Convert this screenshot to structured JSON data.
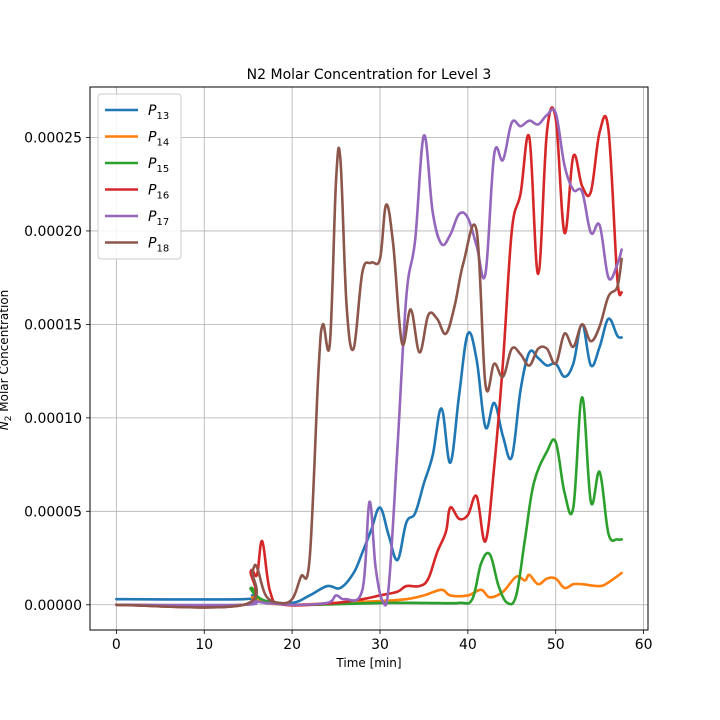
{
  "chart_data": {
    "type": "line",
    "title": "N2 Molar Concentration for Level 3",
    "xlabel": "Time [min]",
    "ylabel_sub": "2",
    "ylabel_main": "N",
    "ylabel_rest": " Molar Concentration",
    "xlim": [
      -3,
      60.5
    ],
    "ylim": [
      -1.35e-05,
      0.000277
    ],
    "xticks": [
      0,
      10,
      20,
      30,
      40,
      50,
      60
    ],
    "xtick_labels": [
      "0",
      "10",
      "20",
      "30",
      "40",
      "50",
      "60"
    ],
    "yticks": [
      0,
      5e-05,
      0.0001,
      0.00015,
      0.0002,
      0.00025
    ],
    "ytick_labels": [
      "0.00000",
      "0.00005",
      "0.00010",
      "0.00015",
      "0.00020",
      "0.00025"
    ],
    "grid": true,
    "legend_position": "top-left",
    "series": [
      {
        "name": "P",
        "sub": "13",
        "color": "#1f77b4",
        "points": [
          [
            0,
            3e-06
          ],
          [
            14.5,
            3e-06
          ],
          [
            15.5,
            5e-06
          ],
          [
            17,
            2e-06
          ],
          [
            20,
            1e-06
          ],
          [
            22,
            5e-06
          ],
          [
            24,
            1e-05
          ],
          [
            25.5,
            9e-06
          ],
          [
            27,
            1.7e-05
          ],
          [
            28,
            2.8e-05
          ],
          [
            29,
            4e-05
          ],
          [
            30,
            5.2e-05
          ],
          [
            31,
            3.7e-05
          ],
          [
            32,
            2.4e-05
          ],
          [
            33,
            4.4e-05
          ],
          [
            34,
            4.9e-05
          ],
          [
            35,
            6.5e-05
          ],
          [
            36,
            8e-05
          ],
          [
            37,
            0.000105
          ],
          [
            38,
            7.6e-05
          ],
          [
            39,
            0.000112
          ],
          [
            40,
            0.000145
          ],
          [
            41,
            0.000131
          ],
          [
            42,
            9.5e-05
          ],
          [
            43,
            0.000108
          ],
          [
            44,
            9e-05
          ],
          [
            45,
            7.9e-05
          ],
          [
            46,
            0.000115
          ],
          [
            47,
            0.000135
          ],
          [
            48,
            0.000132
          ],
          [
            49,
            0.000128
          ],
          [
            50,
            0.000129
          ],
          [
            51,
            0.000122
          ],
          [
            52,
            0.000129
          ],
          [
            53,
            0.00015
          ],
          [
            54,
            0.000128
          ],
          [
            55,
            0.000138
          ],
          [
            56,
            0.000153
          ],
          [
            57,
            0.000144
          ],
          [
            57.5,
            0.000143
          ]
        ]
      },
      {
        "name": "P",
        "sub": "14",
        "color": "#ff7f0e",
        "points": [
          [
            0,
            0
          ],
          [
            14.5,
            0
          ],
          [
            15.5,
            4e-06
          ],
          [
            17,
            1e-06
          ],
          [
            20,
            0
          ],
          [
            25,
            1e-06
          ],
          [
            30,
            2e-06
          ],
          [
            33,
            3e-06
          ],
          [
            35,
            5e-06
          ],
          [
            37,
            8e-06
          ],
          [
            38,
            5e-06
          ],
          [
            40,
            5e-06
          ],
          [
            41.5,
            8e-06
          ],
          [
            42.5,
            4e-06
          ],
          [
            44,
            7e-06
          ],
          [
            45.5,
            1.5e-05
          ],
          [
            46.5,
            1.3e-05
          ],
          [
            47,
            1.6e-05
          ],
          [
            48,
            1.1e-05
          ],
          [
            49,
            1.4e-05
          ],
          [
            50,
            1.4e-05
          ],
          [
            51,
            9e-06
          ],
          [
            52,
            1.1e-05
          ],
          [
            53,
            1.1e-05
          ],
          [
            55,
            1e-05
          ],
          [
            56,
            1.2e-05
          ],
          [
            57.5,
            1.7e-05
          ]
        ]
      },
      {
        "name": "P",
        "sub": "15",
        "color": "#2ca02c",
        "points": [
          [
            0,
            0
          ],
          [
            14.5,
            0
          ],
          [
            15.3,
            9e-06
          ],
          [
            16.5,
            3e-06
          ],
          [
            20,
            0
          ],
          [
            30,
            1e-06
          ],
          [
            35,
            1e-06
          ],
          [
            39,
            1e-06
          ],
          [
            40.5,
            3e-06
          ],
          [
            41.5,
            2.2e-05
          ],
          [
            42.5,
            2.7e-05
          ],
          [
            43.5,
            1e-05
          ],
          [
            44.5,
            1e-06
          ],
          [
            45.5,
            5e-06
          ],
          [
            46.5,
            3.5e-05
          ],
          [
            47.5,
            6.5e-05
          ],
          [
            49,
            8.2e-05
          ],
          [
            50,
            8.7e-05
          ],
          [
            51,
            6e-05
          ],
          [
            52,
            5.2e-05
          ],
          [
            53,
            0.000111
          ],
          [
            54,
            5.5e-05
          ],
          [
            55,
            7.1e-05
          ],
          [
            56,
            3.8e-05
          ],
          [
            57,
            3.5e-05
          ],
          [
            57.5,
            3.5e-05
          ]
        ]
      },
      {
        "name": "P",
        "sub": "16",
        "color": "#d62728",
        "points": [
          [
            0,
            0
          ],
          [
            14.5,
            0
          ],
          [
            15.3,
            1.8e-05
          ],
          [
            16,
            1.6e-05
          ],
          [
            16.6,
            3.4e-05
          ],
          [
            17.5,
            7e-06
          ],
          [
            19,
            0
          ],
          [
            25,
            1e-06
          ],
          [
            28,
            3e-06
          ],
          [
            30,
            5e-06
          ],
          [
            32,
            7e-06
          ],
          [
            33,
            1e-05
          ],
          [
            34.5,
            1e-05
          ],
          [
            35.5,
            1.4e-05
          ],
          [
            36.5,
            2.8e-05
          ],
          [
            37.5,
            3.9e-05
          ],
          [
            38,
            5.2e-05
          ],
          [
            39,
            4.6e-05
          ],
          [
            40,
            4.8e-05
          ],
          [
            41,
            5.8e-05
          ],
          [
            42,
            3.4e-05
          ],
          [
            43,
            7.4e-05
          ],
          [
            44,
            0.00013
          ],
          [
            45,
            0.0002
          ],
          [
            46,
            0.00022
          ],
          [
            47,
            0.00025
          ],
          [
            48,
            0.000177
          ],
          [
            49,
            0.000253
          ],
          [
            50,
            0.00026
          ],
          [
            51,
            0.000199
          ],
          [
            52,
            0.00024
          ],
          [
            53,
            0.000224
          ],
          [
            54,
            0.000221
          ],
          [
            55,
            0.000253
          ],
          [
            56,
            0.000254
          ],
          [
            57,
            0.000175
          ],
          [
            57.5,
            0.000167
          ]
        ]
      },
      {
        "name": "P",
        "sub": "17",
        "color": "#9467bd",
        "points": [
          [
            0,
            0
          ],
          [
            14.5,
            0
          ],
          [
            15.5,
            2e-06
          ],
          [
            17,
            1e-06
          ],
          [
            20,
            0
          ],
          [
            24,
            1e-06
          ],
          [
            25,
            5e-06
          ],
          [
            26,
            3e-06
          ],
          [
            28,
            8e-06
          ],
          [
            28.8,
            5.5e-05
          ],
          [
            29.5,
            2e-05
          ],
          [
            30.3,
            2e-06
          ],
          [
            31,
            1e-05
          ],
          [
            32,
            8.5e-05
          ],
          [
            33,
            0.000165
          ],
          [
            34,
            0.000195
          ],
          [
            35,
            0.000251
          ],
          [
            36,
            0.00021
          ],
          [
            37,
            0.000193
          ],
          [
            38,
            0.000198
          ],
          [
            39,
            0.000209
          ],
          [
            40,
            0.000207
          ],
          [
            41,
            0.000192
          ],
          [
            42,
            0.000177
          ],
          [
            43,
            0.000241
          ],
          [
            44,
            0.000238
          ],
          [
            45,
            0.000258
          ],
          [
            46,
            0.000256
          ],
          [
            47,
            0.000259
          ],
          [
            48,
            0.000257
          ],
          [
            49,
            0.000262
          ],
          [
            50,
            0.000263
          ],
          [
            51,
            0.000235
          ],
          [
            52,
            0.000222
          ],
          [
            53,
            0.000221
          ],
          [
            54,
            0.000199
          ],
          [
            55,
            0.000203
          ],
          [
            56,
            0.000175
          ],
          [
            57,
            0.000182
          ],
          [
            57.5,
            0.00019
          ]
        ]
      },
      {
        "name": "P",
        "sub": "18",
        "color": "#8c564b",
        "points": [
          [
            0,
            0
          ],
          [
            14.5,
            0
          ],
          [
            15.5,
            1.8e-05
          ],
          [
            16,
            2e-05
          ],
          [
            17,
            5e-06
          ],
          [
            18.5,
            1e-06
          ],
          [
            20,
            3e-06
          ],
          [
            21,
            1.5e-05
          ],
          [
            22,
            2.5e-05
          ],
          [
            23,
            0.000125
          ],
          [
            23.5,
            0.00015
          ],
          [
            24.3,
            0.00014
          ],
          [
            25,
            0.000227
          ],
          [
            25.5,
            0.000238
          ],
          [
            26.2,
            0.00016
          ],
          [
            27,
            0.000137
          ],
          [
            28,
            0.000178
          ],
          [
            29,
            0.000183
          ],
          [
            30,
            0.000185
          ],
          [
            30.7,
            0.000214
          ],
          [
            31.5,
            0.000193
          ],
          [
            32.5,
            0.00014
          ],
          [
            33.5,
            0.000158
          ],
          [
            34.5,
            0.000135
          ],
          [
            35.5,
            0.000155
          ],
          [
            36.5,
            0.000153
          ],
          [
            37.5,
            0.000145
          ],
          [
            38.5,
            0.00016
          ],
          [
            39.5,
            0.000183
          ],
          [
            41,
            0.0002
          ],
          [
            42,
            0.000118
          ],
          [
            43,
            0.000129
          ],
          [
            44,
            0.000122
          ],
          [
            45,
            0.000137
          ],
          [
            46,
            0.000134
          ],
          [
            47,
            0.000128
          ],
          [
            48,
            0.000137
          ],
          [
            49,
            0.000137
          ],
          [
            50,
            0.000129
          ],
          [
            51,
            0.000145
          ],
          [
            52,
            0.000138
          ],
          [
            53,
            0.00015
          ],
          [
            54,
            0.000141
          ],
          [
            55,
            0.000149
          ],
          [
            56,
            0.000165
          ],
          [
            57,
            0.00017
          ],
          [
            57.5,
            0.000185
          ]
        ]
      }
    ]
  }
}
